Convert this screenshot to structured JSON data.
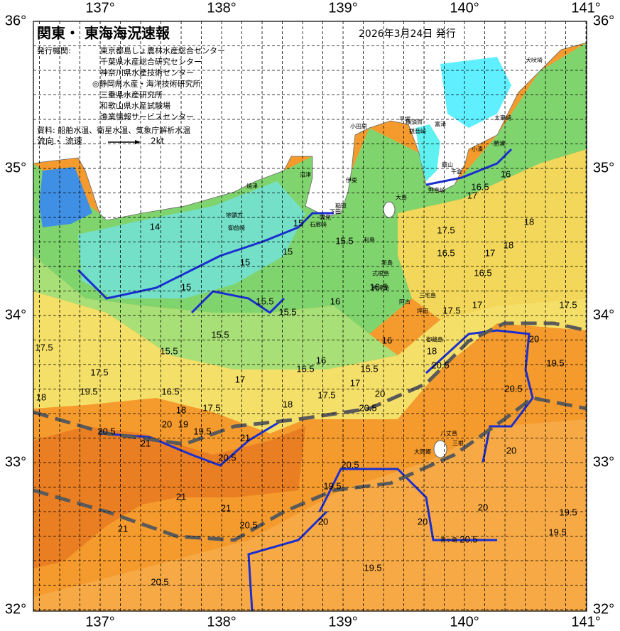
{
  "header": {
    "title": "関東・ 東海海況速報",
    "issued": "2026年3月24日 発行",
    "agencies_label": "発行機関:",
    "agencies": [
      "東京都島しょ農林水産総合センター",
      "千葉県水産総合研究センター",
      "神奈川県水産技術センター",
      "◎静岡県水産・海洋技術研究所",
      "三重県水産研究所",
      "和歌山県水産試験場",
      "漁業情報サービスセンター"
    ],
    "source": "資料: 船舶水温、衛星水温、気象庁解析水温",
    "flow_label": "流向・ 流速",
    "flow_speed": "2kt"
  },
  "axes": {
    "longitude_labels": [
      "137°",
      "138°",
      "139°",
      "140°",
      "141°"
    ],
    "latitude_labels": [
      "36°",
      "35°",
      "34°",
      "33°",
      "32°"
    ]
  },
  "place_names": [
    "犬吠埼",
    "太東崎",
    "勝浦",
    "小湊",
    "平塚",
    "横須賀",
    "観音崎",
    "富津",
    "小田原",
    "館山",
    "千倉",
    "野島崎",
    "大島",
    "伊東",
    "稲取",
    "下田",
    "雲見",
    "石廊崎",
    "沼津",
    "焼津",
    "地頭方",
    "御前崎",
    "利島",
    "新島",
    "式根島",
    "神津島",
    "三宅島",
    "阿古",
    "坪田",
    "御蔵島",
    "八丈島",
    "三根",
    "大賀郷",
    "青ヶ島"
  ],
  "contour_labels": [
    "14",
    "15",
    "15",
    "15",
    "15",
    "15.5",
    "15.5",
    "15.5",
    "15.5",
    "15.5",
    "15.5",
    "16",
    "16.5",
    "16",
    "16.5",
    "16",
    "17.5",
    "17.5",
    "19.5",
    "18",
    "16.5",
    "17",
    "17.5",
    "17",
    "18",
    "17.5",
    "19.5",
    "18",
    "19",
    "20",
    "20.5",
    "21",
    "20.5",
    "21",
    "21",
    "21",
    "21",
    "20.5",
    "20.5",
    "20.5",
    "19.5",
    "20",
    "20",
    "20.5",
    "20",
    "19.5",
    "19.5",
    "19.5",
    "20",
    "20.5",
    "19.5",
    "20",
    "20.5",
    "20",
    "20.5",
    "18",
    "17.5",
    "17",
    "17.5",
    "16.5",
    "16.5",
    "17",
    "18",
    "18",
    "17.5",
    "16.5",
    "16",
    "17"
  ]
}
